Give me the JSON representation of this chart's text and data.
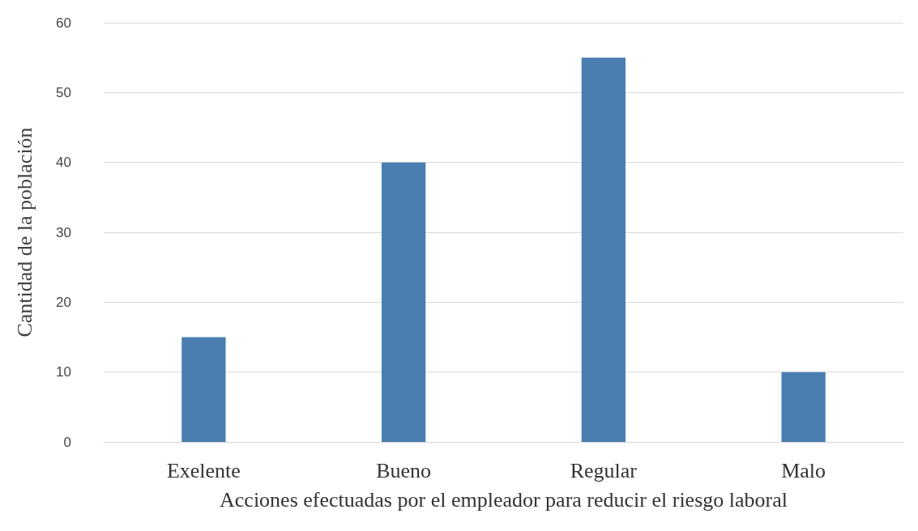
{
  "chart_data": {
    "type": "bar",
    "xlabel": "Acciones efectuadas por el empleador para reducir el riesgo laboral",
    "ylabel": "Cantidad de la población",
    "categories": [
      "Exelente",
      "Bueno",
      "Regular",
      "Malo"
    ],
    "values": [
      15,
      40,
      55,
      10
    ],
    "color": "#4a7eb0",
    "ylim": [
      0,
      60
    ],
    "yticks": [
      0,
      10,
      20,
      30,
      40,
      50,
      60
    ],
    "grid": "y"
  }
}
